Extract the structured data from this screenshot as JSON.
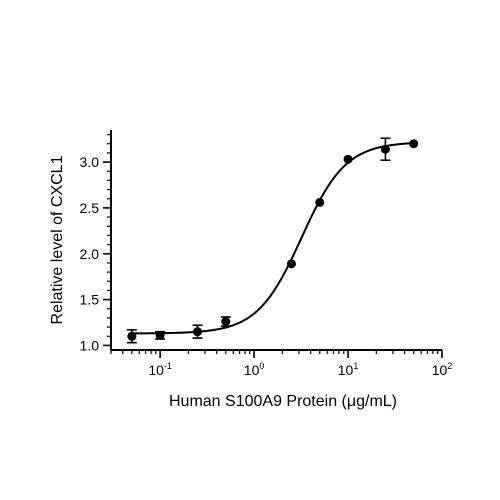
{
  "chart_data": {
    "type": "scatter",
    "title": "",
    "xlabel": "Human S100A9 Protein (μg/mL)",
    "ylabel": "Relative level of CXCL1",
    "x_scale": "log",
    "xlim": [
      0.03,
      100
    ],
    "ylim": [
      0.95,
      3.35
    ],
    "x_ticks": [
      {
        "value": 0.1,
        "base": "10",
        "exp": "-1"
      },
      {
        "value": 1,
        "base": "10",
        "exp": "0"
      },
      {
        "value": 10,
        "base": "10",
        "exp": "1"
      },
      {
        "value": 100,
        "base": "10",
        "exp": "2"
      }
    ],
    "y_ticks": [
      {
        "value": 1.0,
        "label": "1.0"
      },
      {
        "value": 1.5,
        "label": "1.5"
      },
      {
        "value": 2.0,
        "label": "2.0"
      },
      {
        "value": 2.5,
        "label": "2.5"
      },
      {
        "value": 3.0,
        "label": "3.0"
      }
    ],
    "grid": false,
    "points": [
      {
        "x": 0.05,
        "y": 1.1,
        "err": 0.07
      },
      {
        "x": 0.1,
        "y": 1.11,
        "err": 0.04
      },
      {
        "x": 0.25,
        "y": 1.15,
        "err": 0.07
      },
      {
        "x": 0.5,
        "y": 1.26,
        "err": 0.05
      },
      {
        "x": 2.5,
        "y": 1.89,
        "err": 0
      },
      {
        "x": 5,
        "y": 2.56,
        "err": 0
      },
      {
        "x": 10,
        "y": 3.03,
        "err": 0
      },
      {
        "x": 25,
        "y": 3.14,
        "err": 0.12
      },
      {
        "x": 50,
        "y": 3.2,
        "err": 0
      }
    ],
    "fit": {
      "model": "4PL",
      "bottom": 1.13,
      "top": 3.22,
      "ec50": 3.2,
      "hill": 1.85,
      "x_range": [
        0.05,
        50
      ]
    }
  }
}
